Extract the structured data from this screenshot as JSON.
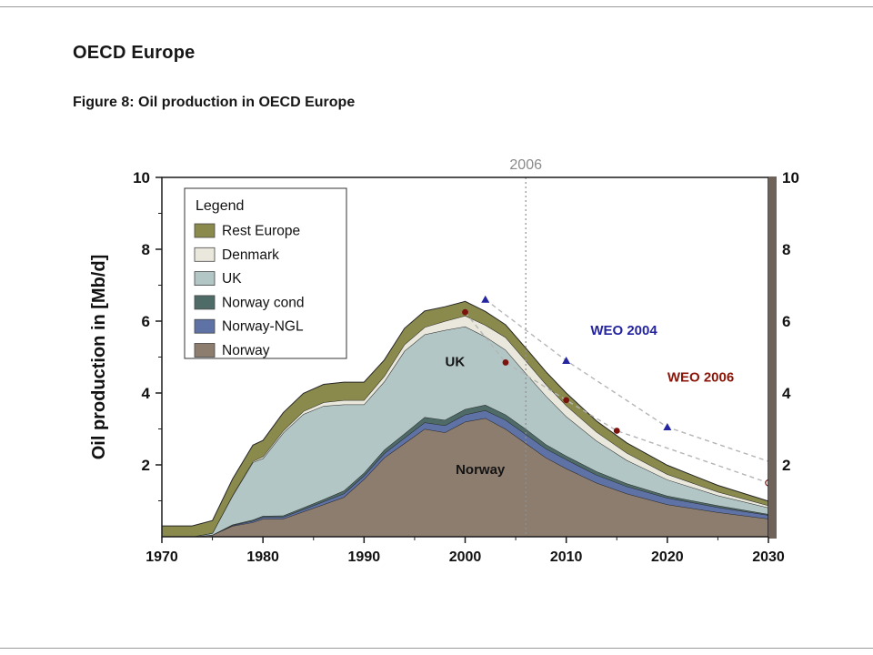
{
  "page": {
    "title": "OECD Europe",
    "figure_caption": "Figure 8: Oil production in OECD Europe"
  },
  "chart_data": {
    "type": "area",
    "stacked": true,
    "title": "Oil production in OECD Europe",
    "ylabel": "Oil production in [Mb/d]",
    "xlim": [
      1970,
      2030
    ],
    "ylim": [
      0,
      10
    ],
    "xticks": [
      1970,
      1980,
      1990,
      2000,
      2010,
      2020,
      2030
    ],
    "yticks": [
      2,
      4,
      6,
      8,
      10
    ],
    "y_axis_right": true,
    "grid": false,
    "legend_title": "Legend",
    "legend_position": "top-left",
    "x": [
      1970,
      1973,
      1975,
      1977,
      1979,
      1980,
      1982,
      1984,
      1986,
      1988,
      1990,
      1992,
      1994,
      1996,
      1998,
      2000,
      2002,
      2004,
      2006,
      2008,
      2010,
      2013,
      2016,
      2020,
      2025,
      2030
    ],
    "series": [
      {
        "name": "Norway",
        "color": "#8d7d6f",
        "values": [
          0,
          0,
          0.05,
          0.3,
          0.4,
          0.5,
          0.5,
          0.7,
          0.9,
          1.1,
          1.6,
          2.2,
          2.6,
          3.0,
          2.9,
          3.2,
          3.3,
          3.0,
          2.6,
          2.2,
          1.9,
          1.5,
          1.2,
          0.9,
          0.68,
          0.5
        ]
      },
      {
        "name": "Norway-NGL",
        "color": "#5f72a6",
        "values": [
          0,
          0,
          0,
          0.02,
          0.04,
          0.05,
          0.05,
          0.06,
          0.08,
          0.1,
          0.1,
          0.12,
          0.15,
          0.18,
          0.2,
          0.2,
          0.22,
          0.25,
          0.25,
          0.25,
          0.25,
          0.22,
          0.2,
          0.18,
          0.14,
          0.1
        ]
      },
      {
        "name": "Norway cond",
        "color": "#4f6b68",
        "values": [
          0,
          0,
          0,
          0.02,
          0.03,
          0.03,
          0.04,
          0.05,
          0.06,
          0.08,
          0.08,
          0.1,
          0.12,
          0.15,
          0.15,
          0.15,
          0.15,
          0.15,
          0.15,
          0.12,
          0.1,
          0.1,
          0.08,
          0.06,
          0.05,
          0.03
        ]
      },
      {
        "name": "UK",
        "color": "#b2c6c6",
        "values": [
          0,
          0,
          0.05,
          0.8,
          1.6,
          1.6,
          2.3,
          2.6,
          2.6,
          2.4,
          1.9,
          1.9,
          2.3,
          2.3,
          2.5,
          2.3,
          1.9,
          1.8,
          1.55,
          1.35,
          1.1,
          0.85,
          0.65,
          0.45,
          0.28,
          0.18
        ]
      },
      {
        "name": "Denmark",
        "color": "#eae8dd",
        "values": [
          0,
          0,
          0,
          0.02,
          0.03,
          0.05,
          0.06,
          0.08,
          0.1,
          0.12,
          0.12,
          0.15,
          0.18,
          0.2,
          0.25,
          0.3,
          0.32,
          0.35,
          0.35,
          0.32,
          0.3,
          0.25,
          0.2,
          0.15,
          0.1,
          0.06
        ]
      },
      {
        "name": "Rest Europe",
        "color": "#8a8a4d",
        "values": [
          0.3,
          0.3,
          0.35,
          0.45,
          0.45,
          0.45,
          0.5,
          0.5,
          0.5,
          0.5,
          0.5,
          0.45,
          0.45,
          0.45,
          0.4,
          0.4,
          0.38,
          0.35,
          0.35,
          0.35,
          0.35,
          0.3,
          0.28,
          0.25,
          0.18,
          0.12
        ]
      }
    ],
    "area_labels": [
      {
        "text": "UK",
        "x": 1999,
        "y": 4.75
      },
      {
        "text": "Norway",
        "x": 2001.5,
        "y": 1.75
      }
    ],
    "reference_line": {
      "x": 2006,
      "label": "2006",
      "color": "#8f8f8f"
    },
    "projections": [
      {
        "name": "WEO 2004",
        "line": [
          [
            2002,
            6.6
          ],
          [
            2010,
            4.9
          ],
          [
            2020,
            3.05
          ],
          [
            2030,
            2.1
          ]
        ],
        "markers": [
          [
            2002,
            6.6
          ],
          [
            2010,
            4.9
          ],
          [
            2020,
            3.05
          ]
        ],
        "open_markers": [],
        "marker": "triangle",
        "marker_color": "#2525a0",
        "label": "WEO 2004",
        "label_color": "#2525a0",
        "label_x": 2012.4,
        "label_y": 5.62
      },
      {
        "name": "WEO 2006",
        "line": [
          [
            2000,
            6.25
          ],
          [
            2004,
            4.85
          ],
          [
            2010,
            3.8
          ],
          [
            2015,
            2.95
          ],
          [
            2030,
            1.5
          ]
        ],
        "markers": [
          [
            2000,
            6.25
          ],
          [
            2004,
            4.85
          ],
          [
            2010,
            3.8
          ],
          [
            2015,
            2.95
          ]
        ],
        "open_markers": [
          [
            2030,
            1.5
          ]
        ],
        "marker": "circle",
        "marker_color": "#7a130e",
        "label": "WEO 2006",
        "label_color": "#8b1508",
        "label_x": 2020,
        "label_y": 4.32
      }
    ]
  }
}
